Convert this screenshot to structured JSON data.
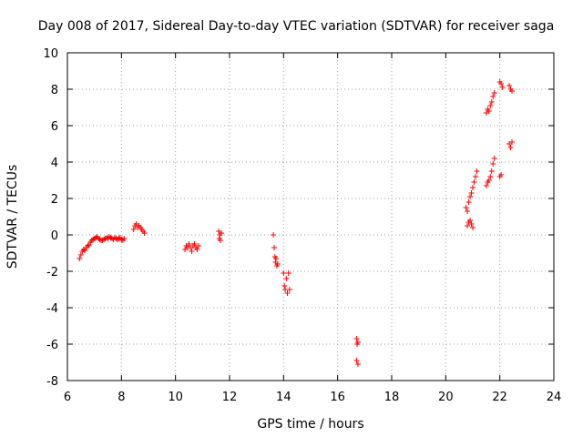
{
  "chart_data": {
    "type": "scatter",
    "title": "Day 008 of 2017, Sidereal Day-to-day VTEC variation (SDTVAR) for receiver saga",
    "xlabel": "GPS time / hours",
    "ylabel": "SDTVAR / TECUs",
    "xlim": [
      6,
      24
    ],
    "ylim": [
      -8,
      10
    ],
    "xticks": [
      "6",
      "8",
      "10",
      "12",
      "14",
      "16",
      "18",
      "20",
      "22",
      "24"
    ],
    "yticks": [
      "-8",
      "-6",
      "-4",
      "-2",
      "0",
      "2",
      "4",
      "6",
      "8",
      "10"
    ],
    "grid": true,
    "marker": "+",
    "color": "#ff0000",
    "series": [
      {
        "name": "SDTVAR",
        "x": [
          6.45,
          6.5,
          6.55,
          6.6,
          6.65,
          6.7,
          6.75,
          6.8,
          6.85,
          6.9,
          6.95,
          7.0,
          7.05,
          7.1,
          7.15,
          7.2,
          7.25,
          7.3,
          7.35,
          7.4,
          7.45,
          7.5,
          7.55,
          7.6,
          7.65,
          7.7,
          7.75,
          7.8,
          7.85,
          7.9,
          7.95,
          8.0,
          8.05,
          8.1,
          8.45,
          8.5,
          8.55,
          8.6,
          8.65,
          8.7,
          8.75,
          8.8,
          8.85,
          10.35,
          10.4,
          10.45,
          10.5,
          10.55,
          10.6,
          10.65,
          10.7,
          10.75,
          10.8,
          10.85,
          11.6,
          11.62,
          11.64,
          11.66,
          11.7,
          13.62,
          13.65,
          13.68,
          13.7,
          13.72,
          13.75,
          13.78,
          14.0,
          14.03,
          14.06,
          14.1,
          14.14,
          14.18,
          14.22,
          16.7,
          16.72,
          16.75,
          16.7,
          16.75,
          20.75,
          20.8,
          20.85,
          20.9,
          20.95,
          21.0,
          21.05,
          21.1,
          21.15,
          20.8,
          20.85,
          20.9,
          20.95,
          21.0,
          21.5,
          21.55,
          21.6,
          21.65,
          21.7,
          21.75,
          21.8,
          21.5,
          21.55,
          21.6,
          21.65,
          21.7,
          21.75,
          21.8,
          22.0,
          22.05,
          22.1,
          22.0,
          22.05,
          22.35,
          22.4,
          22.45,
          22.35,
          22.4,
          22.45
        ],
        "y": [
          -1.3,
          -1.1,
          -0.9,
          -0.8,
          -0.85,
          -0.7,
          -0.6,
          -0.55,
          -0.4,
          -0.3,
          -0.25,
          -0.2,
          -0.15,
          -0.1,
          -0.2,
          -0.25,
          -0.3,
          -0.3,
          -0.25,
          -0.2,
          -0.15,
          -0.2,
          -0.1,
          -0.15,
          -0.2,
          -0.25,
          -0.15,
          -0.2,
          -0.25,
          -0.2,
          -0.15,
          -0.25,
          -0.3,
          -0.2,
          0.3,
          0.5,
          0.6,
          0.4,
          0.5,
          0.4,
          0.3,
          0.2,
          0.1,
          -0.8,
          -0.6,
          -0.7,
          -0.5,
          -0.7,
          -0.9,
          -0.6,
          -0.5,
          -0.7,
          -0.8,
          -0.6,
          0.2,
          -0.2,
          0.0,
          -0.3,
          0.1,
          0.0,
          -0.7,
          -1.2,
          -1.5,
          -1.3,
          -1.7,
          -1.6,
          -2.1,
          -2.8,
          -3.0,
          -2.4,
          -3.2,
          -2.1,
          -3.0,
          -5.7,
          -6.0,
          -5.9,
          -6.9,
          -7.1,
          1.5,
          1.3,
          1.8,
          2.1,
          2.3,
          2.6,
          2.9,
          3.2,
          3.5,
          0.5,
          0.7,
          0.8,
          0.6,
          0.4,
          6.7,
          6.9,
          6.8,
          7.1,
          7.3,
          7.6,
          7.8,
          2.7,
          2.9,
          3.0,
          3.2,
          3.5,
          3.9,
          4.2,
          8.4,
          8.3,
          8.1,
          3.2,
          3.3,
          8.2,
          8.0,
          7.9,
          5.0,
          4.8,
          5.1
        ]
      }
    ]
  }
}
